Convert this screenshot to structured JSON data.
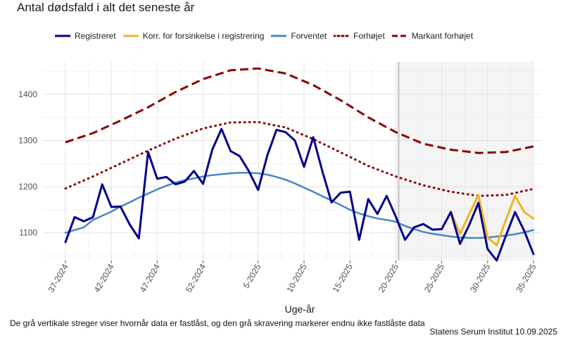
{
  "chart_data": {
    "type": "line",
    "title": "Antal dødsfald i alt det seneste år",
    "xlabel": "Uge-år",
    "ylabel": "",
    "ylim": [
      1040,
      1470
    ],
    "yticks": [
      1100,
      1200,
      1300,
      1400
    ],
    "x_tick_labels": [
      "37-2024",
      "42-2024",
      "47-2024",
      "52-2024",
      "5-2025",
      "10-2025",
      "15-2025",
      "20-2025",
      "25-2025",
      "30-2025",
      "35-2025"
    ],
    "x_tick_weeks": [
      0,
      5,
      10,
      15,
      21,
      26,
      31,
      36,
      41,
      46,
      51
    ],
    "grid": true,
    "legend_placement": "top",
    "shaded_region_start_week": 36.3,
    "vertical_line_week": 36.3,
    "series": [
      {
        "name": "Registreret",
        "color": "#00008b",
        "style": "solid",
        "x": [
          0,
          1,
          2,
          3,
          4,
          5,
          6,
          7,
          8,
          9,
          10,
          11,
          12,
          13,
          14,
          15,
          16,
          17,
          18,
          19,
          20,
          21,
          22,
          23,
          24,
          25,
          26,
          27,
          28,
          29,
          30,
          31,
          32,
          33,
          34,
          35,
          36,
          37,
          38,
          39,
          40,
          41,
          42,
          43,
          44,
          45,
          46,
          47,
          48,
          49,
          50,
          51
        ],
        "values": [
          1080,
          1134,
          1125,
          1134,
          1205,
          1156,
          1157,
          1118,
          1088,
          1275,
          1217,
          1221,
          1205,
          1211,
          1234,
          1206,
          1280,
          1325,
          1277,
          1266,
          1233,
          1193,
          1268,
          1323,
          1318,
          1300,
          1243,
          1307,
          1233,
          1166,
          1187,
          1189,
          1085,
          1173,
          1141,
          1180,
          1135,
          1085,
          1112,
          1119,
          1107,
          1108,
          1145,
          1076,
          1117,
          1165,
          1065,
          1040,
          1094,
          1145,
          1104,
          1054
        ]
      },
      {
        "name": "Korr. for forsinkelse i registrering",
        "color": "#f0b323",
        "style": "solid",
        "x": [
          42,
          43,
          44,
          45,
          46,
          47,
          48,
          49,
          50,
          51
        ],
        "values": [
          1145,
          1098,
          1140,
          1182,
          1090,
          1073,
          1128,
          1180,
          1145,
          1131
        ]
      },
      {
        "name": "Forventet",
        "color": "#4a86c0",
        "style": "solid",
        "x": [
          0,
          1,
          2,
          3,
          4,
          5,
          6,
          7,
          8,
          9,
          10,
          11,
          12,
          13,
          14,
          15,
          16,
          17,
          18,
          19,
          20,
          21,
          22,
          23,
          24,
          25,
          26,
          27,
          28,
          29,
          30,
          31,
          32,
          33,
          34,
          35,
          36,
          37,
          38,
          39,
          40,
          41,
          42,
          43,
          44,
          45,
          46,
          47,
          48,
          49,
          50,
          51
        ],
        "values": [
          1100,
          1106,
          1112,
          1128,
          1137,
          1146,
          1157,
          1166,
          1176,
          1185,
          1194,
          1202,
          1209,
          1214,
          1218,
          1222,
          1225,
          1227,
          1229,
          1230,
          1230,
          1229,
          1226,
          1221,
          1215,
          1207,
          1198,
          1189,
          1179,
          1170,
          1160,
          1150,
          1142,
          1136,
          1131,
          1128,
          1124,
          1115,
          1108,
          1102,
          1098,
          1095,
          1092,
          1090,
          1089,
          1089,
          1090,
          1092,
          1094,
          1097,
          1101,
          1106
        ]
      },
      {
        "name": "Forhøjet",
        "color": "#8b0000",
        "style": "dotted",
        "x": [
          0,
          3,
          6,
          9,
          12,
          15,
          18,
          21,
          24,
          27,
          30,
          33,
          36,
          39,
          42,
          45,
          48,
          51
        ],
        "values": [
          1196,
          1222,
          1250,
          1278,
          1304,
          1326,
          1339,
          1340,
          1328,
          1303,
          1274,
          1245,
          1222,
          1203,
          1189,
          1180,
          1182,
          1195
        ]
      },
      {
        "name": "Markant forhøjet",
        "color": "#8b0000",
        "style": "dashed",
        "x": [
          0,
          3,
          6,
          9,
          12,
          15,
          18,
          21,
          24,
          27,
          30,
          33,
          36,
          39,
          42,
          45,
          48,
          51
        ],
        "values": [
          1296,
          1316,
          1343,
          1372,
          1405,
          1433,
          1452,
          1456,
          1445,
          1420,
          1387,
          1350,
          1318,
          1293,
          1280,
          1273,
          1275,
          1287
        ]
      }
    ]
  },
  "caption": "De grå vertikale streger viser hvornår data er fastlåst, og den grå skravering markerer endnu ikke fastlåste data",
  "source": "Statens Serum Institut  10.09.2025"
}
